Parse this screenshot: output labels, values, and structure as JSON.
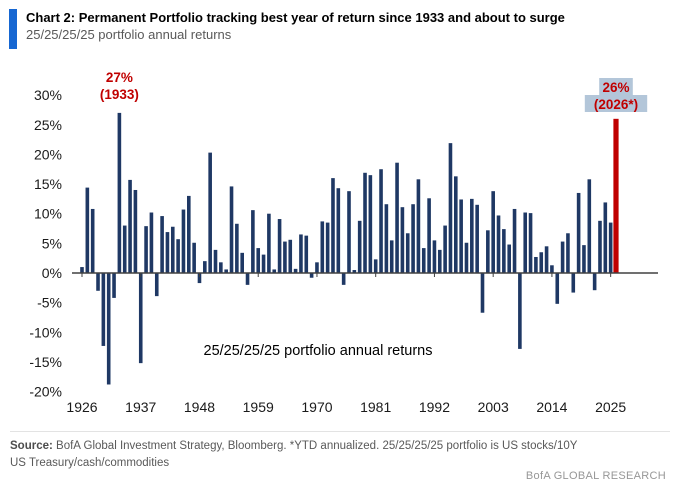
{
  "header": {
    "title": "Chart 2: Permanent Portfolio tracking best year of return since 1933 and about to surge",
    "subtitle": "25/25/25/25 portfolio annual returns",
    "accent_color": "#1667D2"
  },
  "chart_data": {
    "type": "bar",
    "title": "25/25/25/25 portfolio annual returns",
    "inner_label": "25/25/25/25 portfolio annual returns",
    "start_year": 1926,
    "end_year": 2026,
    "years": [
      1926,
      1927,
      1928,
      1929,
      1930,
      1931,
      1932,
      1933,
      1934,
      1935,
      1936,
      1937,
      1938,
      1939,
      1940,
      1941,
      1942,
      1943,
      1944,
      1945,
      1946,
      1947,
      1948,
      1949,
      1950,
      1951,
      1952,
      1953,
      1954,
      1955,
      1956,
      1957,
      1958,
      1959,
      1960,
      1961,
      1962,
      1963,
      1964,
      1965,
      1966,
      1967,
      1968,
      1969,
      1970,
      1971,
      1972,
      1973,
      1974,
      1975,
      1976,
      1977,
      1978,
      1979,
      1980,
      1981,
      1982,
      1983,
      1984,
      1985,
      1986,
      1987,
      1988,
      1989,
      1990,
      1991,
      1992,
      1993,
      1994,
      1995,
      1996,
      1997,
      1998,
      1999,
      2000,
      2001,
      2002,
      2003,
      2004,
      2005,
      2006,
      2007,
      2008,
      2009,
      2010,
      2011,
      2012,
      2013,
      2014,
      2015,
      2016,
      2017,
      2018,
      2019,
      2020,
      2021,
      2022,
      2023,
      2024,
      2025,
      2026
    ],
    "values": [
      1.0,
      14.4,
      10.8,
      -3.0,
      -12.3,
      -18.8,
      -4.2,
      27.0,
      8.0,
      15.7,
      14.0,
      -15.2,
      7.9,
      10.2,
      -3.9,
      9.6,
      6.9,
      7.8,
      5.7,
      10.7,
      13.0,
      5.1,
      -1.7,
      2.0,
      20.3,
      3.9,
      1.8,
      0.6,
      14.6,
      8.3,
      3.4,
      -2.0,
      10.6,
      4.2,
      3.1,
      10.0,
      0.6,
      9.1,
      5.3,
      5.6,
      0.7,
      6.5,
      6.3,
      -0.8,
      1.8,
      8.7,
      8.5,
      16.0,
      14.3,
      -2.0,
      13.8,
      0.5,
      8.8,
      16.9,
      16.5,
      2.3,
      17.5,
      11.6,
      5.5,
      18.6,
      11.1,
      6.7,
      11.6,
      15.8,
      4.2,
      12.6,
      5.5,
      3.9,
      8.0,
      21.9,
      16.3,
      12.4,
      5.1,
      12.5,
      11.5,
      -6.7,
      7.2,
      13.8,
      9.7,
      7.4,
      4.8,
      10.8,
      -12.8,
      10.2,
      10.1,
      2.7,
      3.5,
      4.5,
      1.3,
      -5.2,
      5.3,
      6.7,
      -3.3,
      13.5,
      4.7,
      15.8,
      -2.9,
      8.8,
      11.9,
      8.5,
      26.0
    ],
    "highlight_year": 2026,
    "ylim": [
      -20,
      30
    ],
    "yticks": [
      30,
      25,
      20,
      15,
      10,
      5,
      0,
      -5,
      -10,
      -15,
      -20
    ],
    "ytick_suffix": "%",
    "xticks": [
      1926,
      1937,
      1948,
      1959,
      1970,
      1981,
      1992,
      2003,
      2014,
      2025
    ],
    "grid": false,
    "legend": null,
    "annotations": [
      {
        "name": "peak-1933",
        "year": 1933,
        "line1": "27%",
        "line2": "(1933)",
        "bg": null
      },
      {
        "name": "forecast-2026",
        "year": 2026,
        "line1": "26%",
        "line2": "(2026*)",
        "bg": "#B3C6D9"
      }
    ],
    "colors": {
      "bar": "#1F3864",
      "highlight_bar": "#C00000",
      "annotation_text": "#C00000",
      "annotation_bg": "#B3C6D9",
      "axis": "#404040",
      "tick_label": "#1a1a1a"
    }
  },
  "footer": {
    "source_label": "Source:",
    "source_text": " BofA Global Investment Strategy, Bloomberg. *YTD annualized. 25/25/25/25 portfolio is US stocks/10Y US Treasury/cash/commodities",
    "brand": "BofA GLOBAL RESEARCH"
  }
}
